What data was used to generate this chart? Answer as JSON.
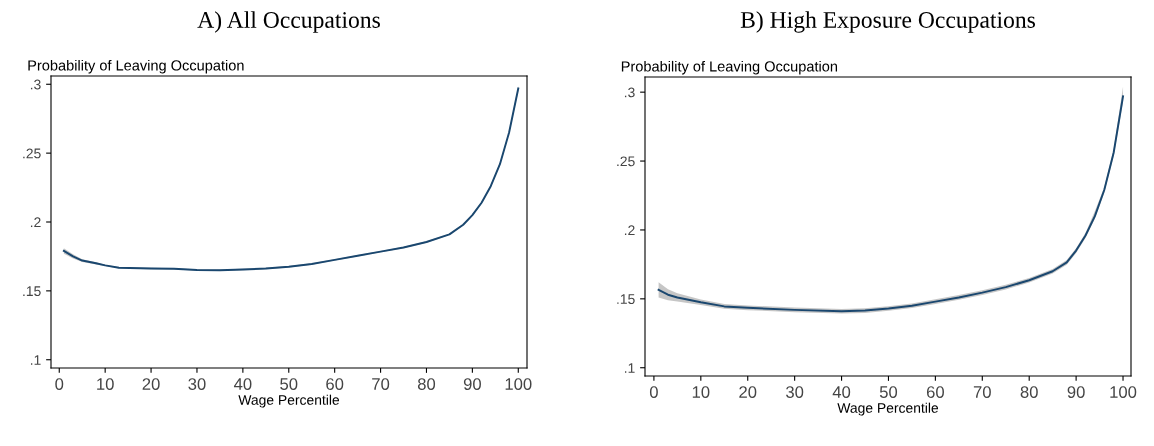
{
  "chart_data": [
    {
      "type": "line",
      "title": "A) All Occupations",
      "ylabel": "Probability of Leaving Occupation",
      "xlabel": "Wage Percentile",
      "xlim": [
        -1.8,
        101.9
      ],
      "xticks": [
        0,
        10,
        20,
        30,
        40,
        50,
        60,
        70,
        80,
        90,
        100
      ],
      "ylim": [
        0.094,
        0.306
      ],
      "yticks": [
        {
          "value": 0.1,
          "label": ".1"
        },
        {
          "value": 0.15,
          "label": ".15"
        },
        {
          "value": 0.2,
          "label": ".2"
        },
        {
          "value": 0.25,
          "label": ".25"
        },
        {
          "value": 0.3,
          "label": ".3"
        }
      ],
      "grid": false,
      "legend": false,
      "x": [
        1,
        3,
        5,
        8,
        10,
        13,
        20,
        25,
        30,
        35,
        40,
        45,
        50,
        55,
        60,
        65,
        70,
        75,
        80,
        85,
        88,
        90,
        92,
        94,
        96,
        98,
        100
      ],
      "series": [
        {
          "color": "#1a476f",
          "values": [
            0.179,
            0.175,
            0.172,
            0.17,
            0.1685,
            0.1668,
            0.1662,
            0.166,
            0.1652,
            0.165,
            0.1655,
            0.1662,
            0.1675,
            0.1695,
            0.1725,
            0.1755,
            0.1785,
            0.1815,
            0.1855,
            0.191,
            0.198,
            0.205,
            0.214,
            0.226,
            0.242,
            0.265,
            0.297
          ],
          "lower": [
            0.177,
            0.1735,
            0.171,
            0.1692,
            0.168,
            0.1663,
            0.1657,
            0.1655,
            0.1647,
            0.1645,
            0.165,
            0.1657,
            0.167,
            0.169,
            0.172,
            0.175,
            0.178,
            0.181,
            0.185,
            0.1905,
            0.1974,
            0.2044,
            0.2133,
            0.2252,
            0.241,
            0.2638,
            0.295
          ],
          "upper": [
            0.181,
            0.1765,
            0.173,
            0.1708,
            0.169,
            0.1673,
            0.1667,
            0.1665,
            0.1657,
            0.1655,
            0.166,
            0.1667,
            0.168,
            0.17,
            0.173,
            0.176,
            0.179,
            0.182,
            0.186,
            0.1915,
            0.1986,
            0.2056,
            0.2147,
            0.2268,
            0.243,
            0.2662,
            0.299
          ]
        }
      ]
    },
    {
      "type": "line",
      "title": "B) High Exposure Occupations",
      "ylabel": "Probability of Leaving Occupation",
      "xlabel": "Wage Percentile",
      "xlim": [
        -1.9,
        101.7
      ],
      "xticks": [
        0,
        10,
        20,
        30,
        40,
        50,
        60,
        70,
        80,
        90,
        100
      ],
      "ylim": [
        0.094,
        0.311
      ],
      "yticks": [
        {
          "value": 0.1,
          "label": ".1"
        },
        {
          "value": 0.15,
          "label": ".15"
        },
        {
          "value": 0.2,
          "label": ".2"
        },
        {
          "value": 0.25,
          "label": ".25"
        },
        {
          "value": 0.3,
          "label": ".3"
        }
      ],
      "grid": false,
      "legend": false,
      "x": [
        1,
        3,
        5,
        10,
        15,
        20,
        30,
        40,
        45,
        50,
        55,
        60,
        65,
        70,
        75,
        80,
        85,
        88,
        90,
        92,
        94,
        96,
        98,
        100
      ],
      "series": [
        {
          "color": "#1a476f",
          "values": [
            0.1565,
            0.153,
            0.151,
            0.1475,
            0.1445,
            0.1435,
            0.142,
            0.141,
            0.1415,
            0.143,
            0.145,
            0.148,
            0.151,
            0.1545,
            0.1585,
            0.1635,
            0.17,
            0.1765,
            0.185,
            0.196,
            0.21,
            0.229,
            0.256,
            0.297
          ],
          "lower": [
            0.151,
            0.149,
            0.148,
            0.1455,
            0.1428,
            0.1418,
            0.1403,
            0.1393,
            0.1398,
            0.1413,
            0.1433,
            0.1463,
            0.1493,
            0.1528,
            0.1568,
            0.1618,
            0.1683,
            0.1748,
            0.1832,
            0.1942,
            0.2082,
            0.227,
            0.2535,
            0.293
          ],
          "upper": [
            0.162,
            0.157,
            0.154,
            0.1495,
            0.1462,
            0.1452,
            0.1437,
            0.1427,
            0.1432,
            0.1447,
            0.1467,
            0.1497,
            0.1527,
            0.1562,
            0.1602,
            0.1652,
            0.1717,
            0.1782,
            0.1868,
            0.1978,
            0.2138,
            0.231,
            0.2585,
            0.304
          ]
        }
      ]
    }
  ]
}
